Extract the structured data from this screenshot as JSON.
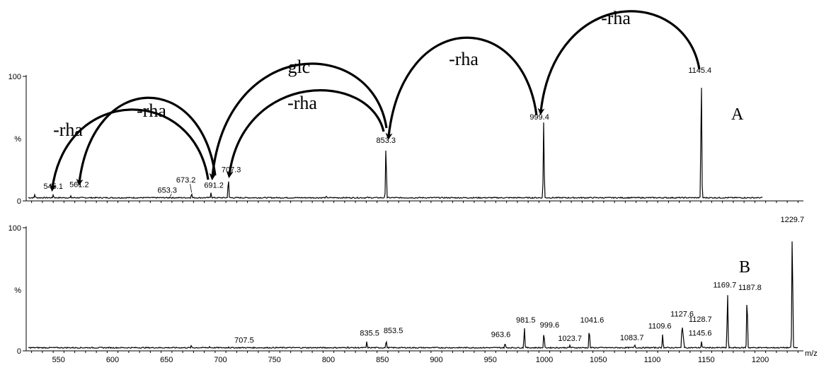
{
  "chart_data": [
    {
      "type": "line",
      "panel_label": "A",
      "y_tick_labels": [
        "100",
        "%",
        "0"
      ],
      "ylim": [
        0,
        100
      ],
      "xlim": [
        520,
        1240
      ],
      "peaks": [
        {
          "mz": 545.1,
          "intensity": 3.5,
          "label": "545.1"
        },
        {
          "mz": 561.2,
          "intensity": 2.5,
          "label": "561.2"
        },
        {
          "mz": 653.3,
          "intensity": 1.5,
          "label": "653.3"
        },
        {
          "mz": 673.2,
          "intensity": 4.5,
          "label": "673.2"
        },
        {
          "mz": 691.2,
          "intensity": 5,
          "label": "691.2"
        },
        {
          "mz": 707.3,
          "intensity": 17,
          "label": "707.3"
        },
        {
          "mz": 853.3,
          "intensity": 44,
          "label": "853.3"
        },
        {
          "mz": 999.4,
          "intensity": 63,
          "label": "999.4"
        },
        {
          "mz": 1145.4,
          "intensity": 100,
          "label": "1145.4"
        }
      ],
      "minor_peaks": [
        {
          "mz": 528,
          "intensity": 3.5
        },
        {
          "mz": 798,
          "intensity": 2
        },
        {
          "mz": 836,
          "intensity": 1.5
        }
      ],
      "annotations": [
        {
          "from": 1145.4,
          "to": 999.4,
          "label": "-rha"
        },
        {
          "from": 999.4,
          "to": 853.3,
          "label": "-rha"
        },
        {
          "from": 853.3,
          "to": 707.3,
          "label": "-rha"
        },
        {
          "from": 853.3,
          "to": 691.2,
          "label": "-glc"
        },
        {
          "from": 707.3,
          "to": 561.2,
          "label": "-rha"
        },
        {
          "from": 691.2,
          "to": 545.1,
          "label": "-rha"
        }
      ]
    },
    {
      "type": "line",
      "panel_label": "B",
      "y_tick_labels": [
        "100",
        "%",
        "0"
      ],
      "ylim": [
        0,
        100
      ],
      "xlim": [
        520,
        1240
      ],
      "xlabel": "m/z",
      "x_ticks": [
        550,
        600,
        650,
        700,
        750,
        800,
        850,
        900,
        950,
        1000,
        1050,
        1100,
        1150,
        1200
      ],
      "peaks": [
        {
          "mz": 707.5,
          "intensity": 1.5,
          "label": "707.5"
        },
        {
          "mz": 835.5,
          "intensity": 6,
          "label": "835.5"
        },
        {
          "mz": 853.5,
          "intensity": 7,
          "label": "853.5"
        },
        {
          "mz": 963.6,
          "intensity": 5,
          "label": "963.6"
        },
        {
          "mz": 981.5,
          "intensity": 18,
          "label": "981.5"
        },
        {
          "mz": 999.6,
          "intensity": 14,
          "label": "999.6"
        },
        {
          "mz": 1023.7,
          "intensity": 3,
          "label": "1023.7"
        },
        {
          "mz": 1041.6,
          "intensity": 17,
          "label": "1041.6"
        },
        {
          "mz": 1083.7,
          "intensity": 3.5,
          "label": "1083.7"
        },
        {
          "mz": 1109.6,
          "intensity": 12,
          "label": "1109.6"
        },
        {
          "mz": 1127.6,
          "intensity": 22,
          "label": "1127.6"
        },
        {
          "mz": 1128.7,
          "intensity": 13,
          "label": "1128.7"
        },
        {
          "mz": 1145.6,
          "intensity": 6,
          "label": "1145.6"
        },
        {
          "mz": 1169.7,
          "intensity": 47,
          "label": "1169.7"
        },
        {
          "mz": 1187.8,
          "intensity": 45,
          "label": "1187.8"
        },
        {
          "mz": 1229.7,
          "intensity": 100,
          "label": "1229.7"
        }
      ],
      "minor_peaks": [
        {
          "mz": 673,
          "intensity": 3
        },
        {
          "mz": 690,
          "intensity": 2
        },
        {
          "mz": 818,
          "intensity": 2
        }
      ]
    }
  ]
}
